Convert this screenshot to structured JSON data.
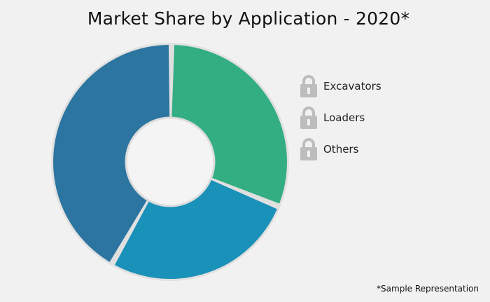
{
  "chart_data": {
    "type": "pie",
    "donut": true,
    "title": "Market Share by Application - 2020*",
    "categories": [
      "Excavators",
      "Loaders",
      "Others"
    ],
    "values": [
      31,
      27,
      42
    ],
    "colors": [
      "#33ae82",
      "#1a91b8",
      "#2c75a0"
    ],
    "legend": {
      "position": "right",
      "icon": "lock-icon",
      "items": [
        "Excavators",
        "Loaders",
        "Others"
      ]
    },
    "annotation": "*Sample Representation"
  }
}
